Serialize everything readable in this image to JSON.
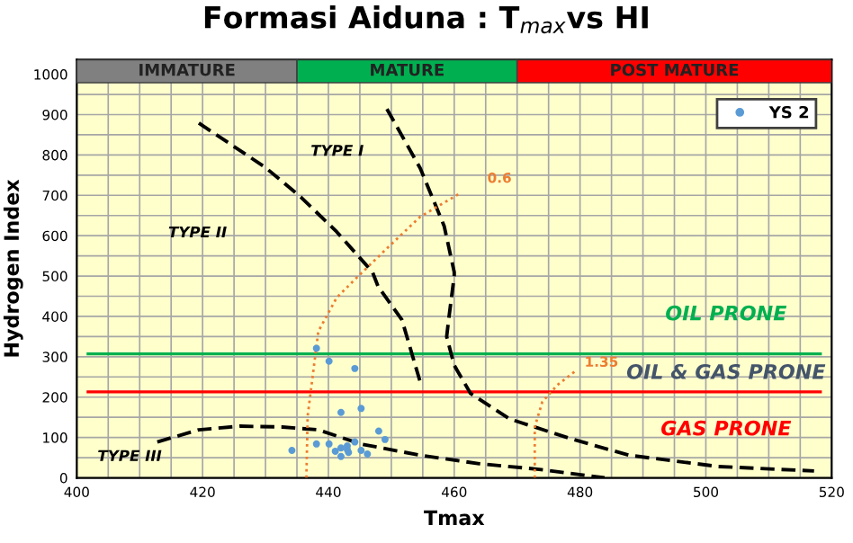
{
  "chart_data": {
    "type": "scatter",
    "title": "Formasi Aiduna : T$_{max}$vs HI",
    "xlabel": "Tmax",
    "ylabel": "Hydrogen Index",
    "xlim": [
      400,
      520
    ],
    "ylim": [
      0,
      1036
    ],
    "xticks": [
      400,
      {
        "value": 405,
        "label": null
      },
      {
        "value": 410,
        "label": null
      },
      {
        "value": 415,
        "label": null
      },
      420,
      {
        "value": 425,
        "label": null
      },
      {
        "value": 430,
        "label": null
      },
      {
        "value": 435,
        "label": null
      },
      440,
      {
        "value": 445,
        "label": null
      },
      {
        "value": 450,
        "label": null
      },
      {
        "value": 455,
        "label": null
      },
      460,
      {
        "value": 465,
        "label": null
      },
      {
        "value": 470,
        "label": null
      },
      {
        "value": 475,
        "label": null
      },
      480,
      {
        "value": 485,
        "label": null
      },
      {
        "value": 490,
        "label": null
      },
      {
        "value": 495,
        "label": null
      },
      500,
      {
        "value": 505,
        "label": null
      },
      {
        "value": 510,
        "label": null
      },
      {
        "value": 515,
        "label": null
      },
      520
    ],
    "yticks": [
      0,
      {
        "value": 50,
        "label": null
      },
      100,
      {
        "value": 150,
        "label": null
      },
      200,
      {
        "value": 250,
        "label": null
      },
      300,
      {
        "value": 350,
        "label": null
      },
      400,
      {
        "value": 450,
        "label": null
      },
      500,
      {
        "value": 550,
        "label": null
      },
      600,
      {
        "value": 650,
        "label": null
      },
      700,
      {
        "value": 750,
        "label": null
      },
      800,
      {
        "value": 850,
        "label": null
      },
      900,
      {
        "value": 950,
        "label": null
      },
      1000
    ],
    "grid": true,
    "legend": "top right",
    "series": [
      {
        "name": "YS 2",
        "marker": "circle",
        "color": "#5b9bd5",
        "x": [
          438.1,
          440.1,
          444.2,
          442.0,
          445.2,
          434.2,
          438.1,
          440.1,
          441.1,
          442.0,
          442.0,
          443.0,
          443.0,
          443.2,
          444.2,
          445.2,
          446.2,
          448.0,
          449.0
        ],
        "values": [
          321,
          289,
          271,
          162,
          172,
          68,
          84,
          84,
          66,
          74,
          53,
          79,
          70,
          63,
          89,
          68,
          59,
          116,
          95
        ]
      },
      {
        "type": "line",
        "line_style": "dashed",
        "color": "#000000",
        "x": [
          449.3,
          454.6,
          458.4,
          460.0,
          460.0,
          459.1,
          458.8,
          460.0,
          462.6,
          468.8,
          478.3,
          487.8,
          502.0,
          517.2
        ],
        "values": [
          914,
          767,
          624,
          510,
          500,
          390,
          350,
          279,
          209,
          146,
          98,
          56,
          28,
          17
        ]
      },
      {
        "type": "line",
        "line_style": "dashed",
        "color": "#000000",
        "x": [
          419.4,
          429.9,
          435.6,
          441.3,
          447.0,
          447.9,
          451.7,
          454.6
        ],
        "values": [
          879,
          770,
          696,
          610,
          510,
          474,
          391,
          237
        ]
      },
      {
        "type": "line",
        "line_style": "dashed",
        "color": "#000000",
        "x": [
          412.8,
          419.4,
          425.9,
          432.7,
          438.4,
          445.1,
          454.6,
          464.0,
          473.5,
          483.9
        ],
        "values": [
          89,
          119,
          128,
          126,
          119,
          84,
          56,
          35,
          21,
          0
        ]
      },
      {
        "type": "line",
        "line_style": "dotted",
        "color": "#ed7d31",
        "x": [
          436.5,
          436.7,
          438.4,
          441.3,
          444.1,
          449.8,
          454.6,
          460.7
        ],
        "values": [
          0,
          153,
          363,
          446,
          490,
          576,
          647,
          703
        ]
      },
      {
        "type": "line",
        "line_style": "dotted",
        "color": "#ed7d31",
        "x": [
          472.8,
          472.8,
          474.0,
          476.4,
          479.3
        ],
        "values": [
          0,
          126,
          188,
          230,
          265
        ]
      }
    ],
    "ref_lines": [
      {
        "axis": "y",
        "value": 307,
        "color": "#00b050"
      },
      {
        "axis": "y",
        "value": 213,
        "color": "#ff0000"
      }
    ],
    "bands": [
      {
        "axis": "x",
        "from": 400,
        "to": 435,
        "label": "IMMATURE",
        "color": "#808080"
      },
      {
        "axis": "x",
        "from": 435,
        "to": 470,
        "label": "MATURE",
        "color": "#00b050"
      },
      {
        "axis": "x",
        "from": 470,
        "to": 520,
        "label": "POST MATURE",
        "color": "#ff0000"
      }
    ],
    "annotations": [
      "TYPE I",
      "TYPE II",
      "TYPE III",
      "0.6",
      "1.35",
      "OIL PRONE",
      "OIL & GAS PRONE",
      "GAS PRONE"
    ]
  }
}
